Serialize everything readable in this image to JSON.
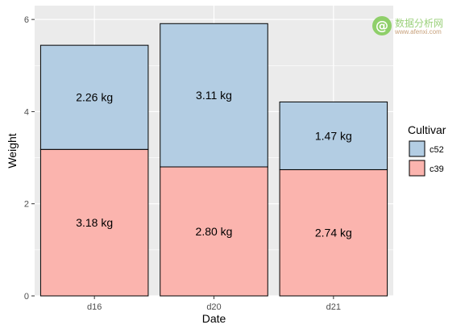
{
  "chart_data": {
    "type": "bar",
    "stacked": true,
    "categories": [
      "d16",
      "d20",
      "d21"
    ],
    "series": [
      {
        "name": "c39",
        "values": [
          3.18,
          2.8,
          2.74
        ],
        "labels": [
          "3.18 kg",
          "2.80 kg",
          "2.74 kg"
        ],
        "color": "#FBB4AE"
      },
      {
        "name": "c52",
        "values": [
          2.26,
          3.11,
          1.47
        ],
        "labels": [
          "2.26 kg",
          "3.11 kg",
          "1.47 kg"
        ],
        "color": "#B3CDE3"
      }
    ],
    "xlabel": "Date",
    "ylabel": "Weight",
    "ylim": [
      0,
      6.3
    ],
    "yticks": [
      0,
      2,
      4,
      6
    ],
    "grid": true,
    "panel_background": "#EBEBEB",
    "legend": {
      "title": "Cultivar",
      "position": "right",
      "order": [
        "c52",
        "c39"
      ]
    }
  },
  "watermark": {
    "logo_glyph": "@",
    "name": "数据分析网",
    "url": "www.afenxi.com"
  }
}
